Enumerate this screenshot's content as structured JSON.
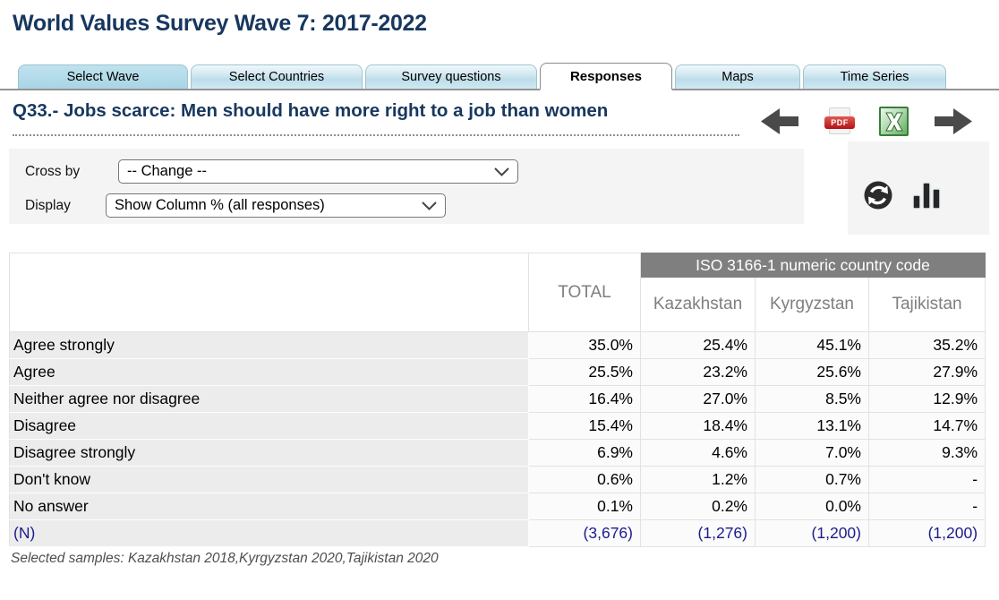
{
  "page": {
    "title": "World Values Survey Wave 7: 2017-2022"
  },
  "tabs": [
    {
      "label": "Select Wave",
      "active": false
    },
    {
      "label": "Select Countries",
      "active": false
    },
    {
      "label": "Survey questions",
      "active": false
    },
    {
      "label": "Responses",
      "active": true
    },
    {
      "label": "Maps",
      "active": false
    },
    {
      "label": "Time Series",
      "active": false
    }
  ],
  "question": {
    "label": "Q33.- Jobs scarce: Men should have more right to a job than women"
  },
  "toolbar": {
    "pdf_label": "PDF",
    "icons": [
      "previous-question-arrow",
      "export-pdf",
      "export-excel",
      "next-question-arrow"
    ]
  },
  "controls": {
    "cross_by_label": "Cross by",
    "cross_by_value": "-- Change --",
    "display_label": "Display",
    "display_value": "Show Column % (all responses)",
    "icons": [
      "refresh",
      "bar-chart"
    ]
  },
  "colors": {
    "title_navy": "#17375e",
    "iso_header_bg": "#7f7f7f",
    "n_row_text": "#1b1b8e",
    "panel_gray": "#f4f4f4",
    "tab_blue": "#cfe9f2"
  },
  "chart_data": {
    "type": "table",
    "group_header": "ISO 3166-1 numeric country code",
    "total_header": "TOTAL",
    "columns": [
      "Kazakhstan",
      "Kyrgyzstan",
      "Tajikistan"
    ],
    "rows": [
      {
        "label": "Agree strongly",
        "total": "35.0%",
        "values": [
          "25.4%",
          "45.1%",
          "35.2%"
        ]
      },
      {
        "label": "Agree",
        "total": "25.5%",
        "values": [
          "23.2%",
          "25.6%",
          "27.9%"
        ]
      },
      {
        "label": "Neither agree nor disagree",
        "total": "16.4%",
        "values": [
          "27.0%",
          "8.5%",
          "12.9%"
        ]
      },
      {
        "label": "Disagree",
        "total": "15.4%",
        "values": [
          "18.4%",
          "13.1%",
          "14.7%"
        ]
      },
      {
        "label": "Disagree strongly",
        "total": "6.9%",
        "values": [
          "4.6%",
          "7.0%",
          "9.3%"
        ]
      },
      {
        "label": "Don't know",
        "total": "0.6%",
        "values": [
          "1.2%",
          "0.7%",
          "-"
        ]
      },
      {
        "label": "No answer",
        "total": "0.1%",
        "values": [
          "0.2%",
          "0.0%",
          "-"
        ]
      },
      {
        "label": "(N)",
        "total": "(3,676)",
        "values": [
          "(1,276)",
          "(1,200)",
          "(1,200)"
        ]
      }
    ]
  },
  "footer": {
    "text": "Selected samples: Kazakhstan 2018,Kyrgyzstan 2020,Tajikistan 2020"
  }
}
